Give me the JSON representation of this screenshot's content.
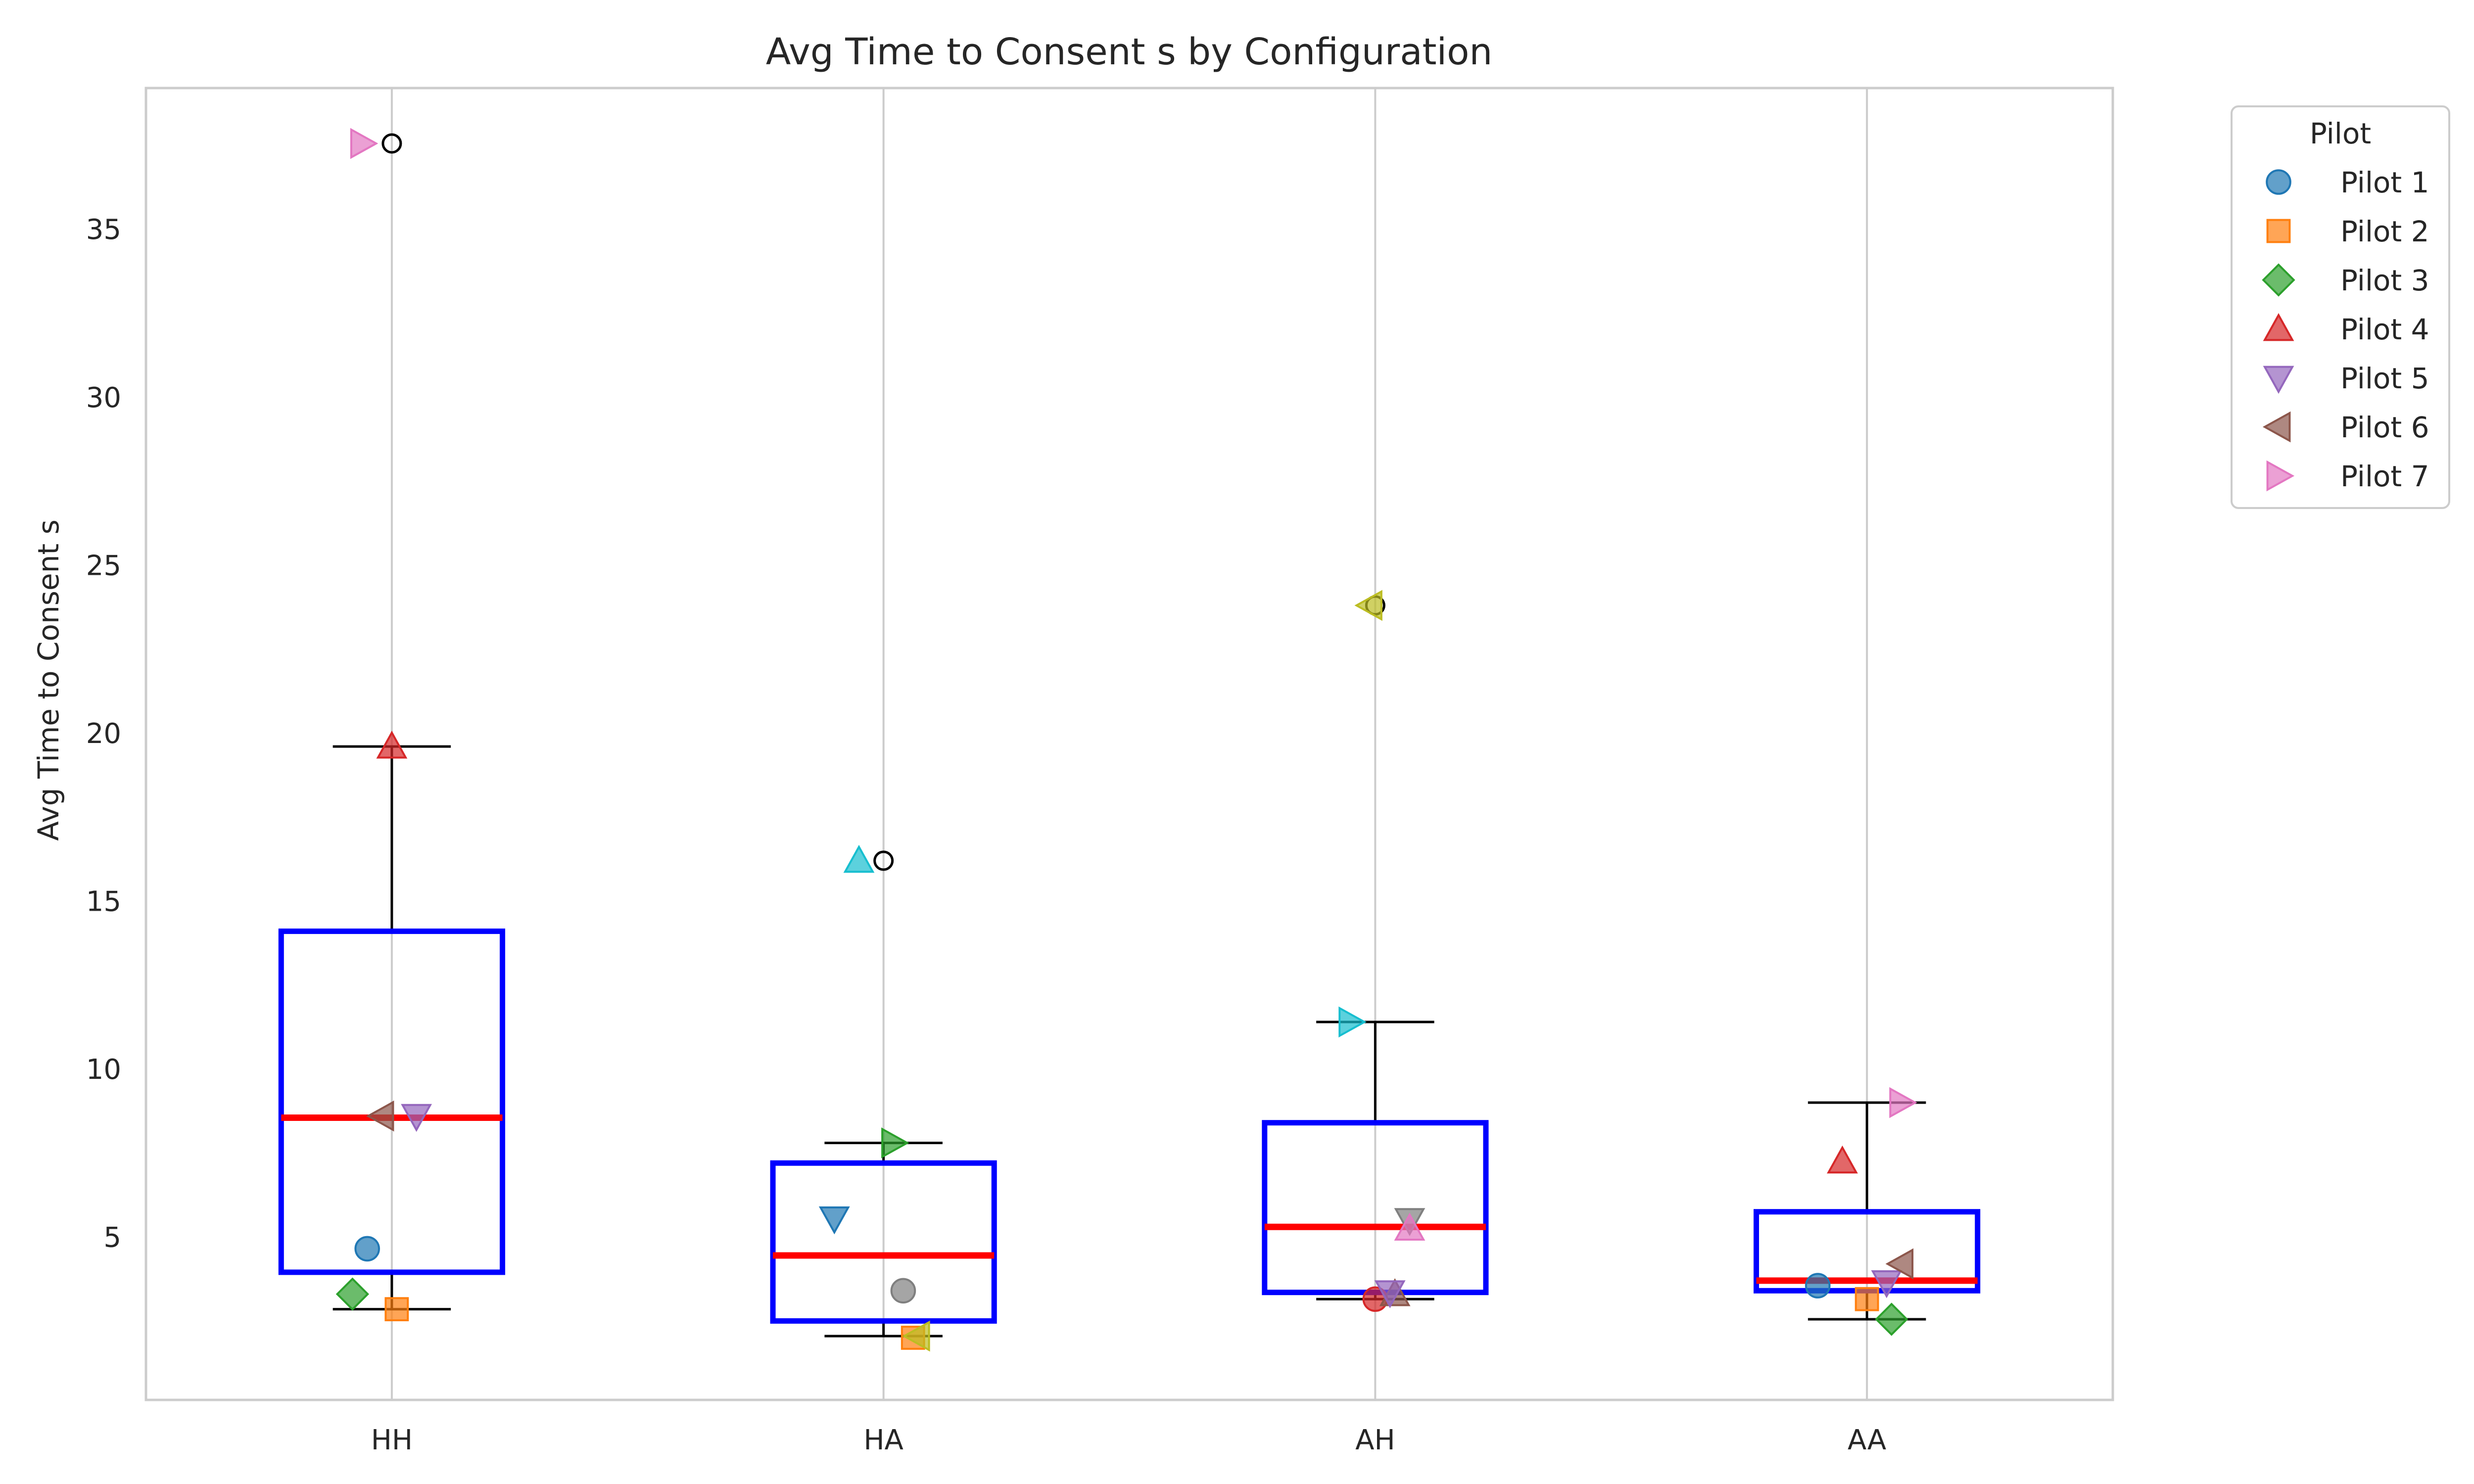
{
  "chart_data": {
    "type": "box",
    "title": "Avg Time to Consent s by Configuration",
    "xlabel": "",
    "ylabel": "Avg Time to Consent s",
    "categories": [
      "HH",
      "HA",
      "AH",
      "AA"
    ],
    "ylim": [
      0.15,
      39.2
    ],
    "yticks": [
      5,
      10,
      15,
      20,
      25,
      30,
      35
    ],
    "grid": "vertical",
    "legend": {
      "title": "Pilot",
      "placement": "outside-top-right",
      "entries": [
        {
          "label": "Pilot 1",
          "marker": "circle",
          "color": "#1f77b4"
        },
        {
          "label": "Pilot 2",
          "marker": "square",
          "color": "#ff7f0e"
        },
        {
          "label": "Pilot 3",
          "marker": "diamond",
          "color": "#2ca02c"
        },
        {
          "label": "Pilot 4",
          "marker": "triangle-up",
          "color": "#d62728"
        },
        {
          "label": "Pilot 5",
          "marker": "triangle-down",
          "color": "#9467bd"
        },
        {
          "label": "Pilot 6",
          "marker": "triangle-left",
          "color": "#8c564b"
        },
        {
          "label": "Pilot 7",
          "marker": "triangle-right",
          "color": "#e377c2"
        }
      ]
    },
    "boxes": [
      {
        "category": "HH",
        "q1": 3.95,
        "median": 8.55,
        "q3": 14.1,
        "whisker_low": 2.85,
        "whisker_high": 19.6,
        "outliers": [
          37.55
        ]
      },
      {
        "category": "HA",
        "q1": 2.5,
        "median": 4.45,
        "q3": 7.2,
        "whisker_low": 2.05,
        "whisker_high": 7.8,
        "outliers": [
          16.2
        ]
      },
      {
        "category": "AH",
        "q1": 3.35,
        "median": 5.3,
        "q3": 8.4,
        "whisker_low": 3.15,
        "whisker_high": 11.4,
        "outliers": [
          23.8
        ]
      },
      {
        "category": "AA",
        "q1": 3.4,
        "median": 3.7,
        "q3": 5.75,
        "whisker_low": 2.55,
        "whisker_high": 9.0,
        "outliers": []
      }
    ],
    "points": [
      {
        "category": "HH",
        "offset": -0.05,
        "y": 4.65,
        "marker": "circle",
        "color": "#1f77b4"
      },
      {
        "category": "HH",
        "offset": 0.01,
        "y": 2.85,
        "marker": "square",
        "color": "#ff7f0e"
      },
      {
        "category": "HH",
        "offset": -0.08,
        "y": 3.3,
        "marker": "diamond",
        "color": "#2ca02c"
      },
      {
        "category": "HH",
        "offset": 0.0,
        "y": 19.6,
        "marker": "triangle-up",
        "color": "#d62728"
      },
      {
        "category": "HH",
        "offset": 0.05,
        "y": 8.6,
        "marker": "triangle-down",
        "color": "#9467bd"
      },
      {
        "category": "HH",
        "offset": -0.02,
        "y": 8.6,
        "marker": "triangle-left",
        "color": "#8c564b"
      },
      {
        "category": "HH",
        "offset": -0.06,
        "y": 37.55,
        "marker": "triangle-right",
        "color": "#e377c2"
      },
      {
        "category": "HA",
        "offset": -0.1,
        "y": 5.55,
        "marker": "triangle-down",
        "color": "#1f77b4"
      },
      {
        "category": "HA",
        "offset": 0.06,
        "y": 2.0,
        "marker": "square",
        "color": "#ff7f0e"
      },
      {
        "category": "HA",
        "offset": 0.02,
        "y": 7.8,
        "marker": "triangle-right",
        "color": "#2ca02c"
      },
      {
        "category": "HA",
        "offset": 0.04,
        "y": 3.4,
        "marker": "circle",
        "color": "#7f7f7f"
      },
      {
        "category": "HA",
        "offset": 0.07,
        "y": 2.05,
        "marker": "triangle-left",
        "color": "#bcbd22"
      },
      {
        "category": "HA",
        "offset": -0.05,
        "y": 16.2,
        "marker": "triangle-up",
        "color": "#17becf"
      },
      {
        "category": "AH",
        "offset": 0.0,
        "y": 3.15,
        "marker": "circle",
        "color": "#d62728"
      },
      {
        "category": "AH",
        "offset": 0.04,
        "y": 3.3,
        "marker": "triangle-up",
        "color": "#8c564b"
      },
      {
        "category": "AH",
        "offset": 0.03,
        "y": 3.35,
        "marker": "triangle-down",
        "color": "#9467bd"
      },
      {
        "category": "AH",
        "offset": 0.07,
        "y": 5.5,
        "marker": "triangle-down",
        "color": "#7f7f7f"
      },
      {
        "category": "AH",
        "offset": 0.07,
        "y": 5.25,
        "marker": "triangle-up",
        "color": "#e377c2"
      },
      {
        "category": "AH",
        "offset": -0.05,
        "y": 11.4,
        "marker": "triangle-right",
        "color": "#17becf"
      },
      {
        "category": "AH",
        "offset": -0.01,
        "y": 23.8,
        "marker": "triangle-left",
        "color": "#bcbd22"
      },
      {
        "category": "AA",
        "offset": -0.1,
        "y": 3.55,
        "marker": "circle",
        "color": "#1f77b4"
      },
      {
        "category": "AA",
        "offset": 0.0,
        "y": 3.15,
        "marker": "square",
        "color": "#ff7f0e"
      },
      {
        "category": "AA",
        "offset": 0.05,
        "y": 2.55,
        "marker": "diamond",
        "color": "#2ca02c"
      },
      {
        "category": "AA",
        "offset": -0.05,
        "y": 7.25,
        "marker": "triangle-up",
        "color": "#d62728"
      },
      {
        "category": "AA",
        "offset": 0.04,
        "y": 3.65,
        "marker": "triangle-down",
        "color": "#9467bd"
      },
      {
        "category": "AA",
        "offset": 0.07,
        "y": 4.2,
        "marker": "triangle-left",
        "color": "#8c564b"
      },
      {
        "category": "AA",
        "offset": 0.07,
        "y": 9.0,
        "marker": "triangle-right",
        "color": "#e377c2"
      }
    ],
    "colors": {
      "box": "#0000ff",
      "median": "#ff0000",
      "whisker": "#000000",
      "grid": "#cccccc",
      "spine": "#cccccc"
    }
  }
}
